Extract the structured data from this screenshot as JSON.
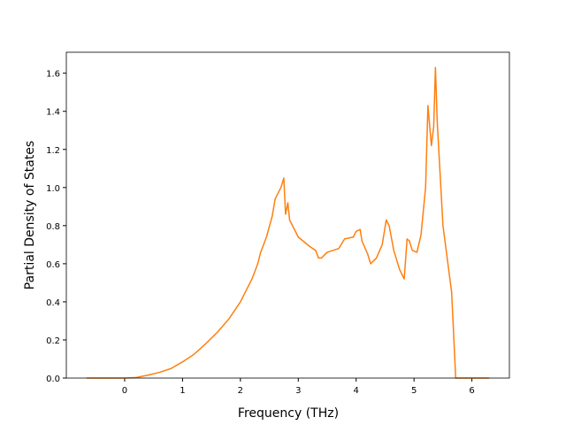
{
  "chart_data": {
    "type": "line",
    "x_label": "Frequency (THz)",
    "y_label": "Partial Density of States",
    "x": [
      -0.66,
      0,
      0.2,
      0.4,
      0.6,
      0.8,
      1.0,
      1.2,
      1.4,
      1.6,
      1.8,
      2.0,
      2.2,
      2.3,
      2.35,
      2.45,
      2.55,
      2.6,
      2.7,
      2.75,
      2.78,
      2.82,
      2.85,
      3.0,
      3.2,
      3.3,
      3.35,
      3.4,
      3.5,
      3.7,
      3.8,
      3.95,
      4.0,
      4.07,
      4.1,
      4.2,
      4.25,
      4.35,
      4.45,
      4.52,
      4.57,
      4.65,
      4.75,
      4.83,
      4.88,
      4.92,
      4.97,
      5.05,
      5.12,
      5.2,
      5.24,
      5.3,
      5.34,
      5.37,
      5.4,
      5.5,
      5.65,
      5.72,
      6.3
    ],
    "series": [
      {
        "color": "#ff7f0e",
        "values": [
          0,
          0,
          0.003,
          0.015,
          0.03,
          0.05,
          0.085,
          0.125,
          0.18,
          0.24,
          0.31,
          0.4,
          0.52,
          0.6,
          0.66,
          0.74,
          0.85,
          0.94,
          1.0,
          1.05,
          0.86,
          0.92,
          0.83,
          0.74,
          0.69,
          0.67,
          0.63,
          0.63,
          0.66,
          0.68,
          0.73,
          0.74,
          0.77,
          0.78,
          0.72,
          0.65,
          0.6,
          0.63,
          0.7,
          0.83,
          0.8,
          0.67,
          0.57,
          0.52,
          0.73,
          0.72,
          0.67,
          0.66,
          0.75,
          1.0,
          1.43,
          1.22,
          1.32,
          1.63,
          1.35,
          0.8,
          0.45,
          0,
          0
        ]
      }
    ],
    "xlim": [
      -1.008,
      6.648
    ],
    "ylim": [
      0,
      1.71
    ],
    "xticks": [
      0,
      1,
      2,
      3,
      4,
      5,
      6
    ],
    "yticks": [
      {
        "value": 0,
        "label": "0.0"
      },
      {
        "value": 0.2,
        "label": "0.2"
      },
      {
        "value": 0.4,
        "label": "0.4"
      },
      {
        "value": 0.6,
        "label": "0.6"
      },
      {
        "value": 0.8,
        "label": "0.8"
      },
      {
        "value": 1.0,
        "label": "1.0"
      },
      {
        "value": 1.2,
        "label": "1.2"
      },
      {
        "value": 1.4,
        "label": "1.4"
      },
      {
        "value": 1.6,
        "label": "1.6"
      }
    ]
  }
}
